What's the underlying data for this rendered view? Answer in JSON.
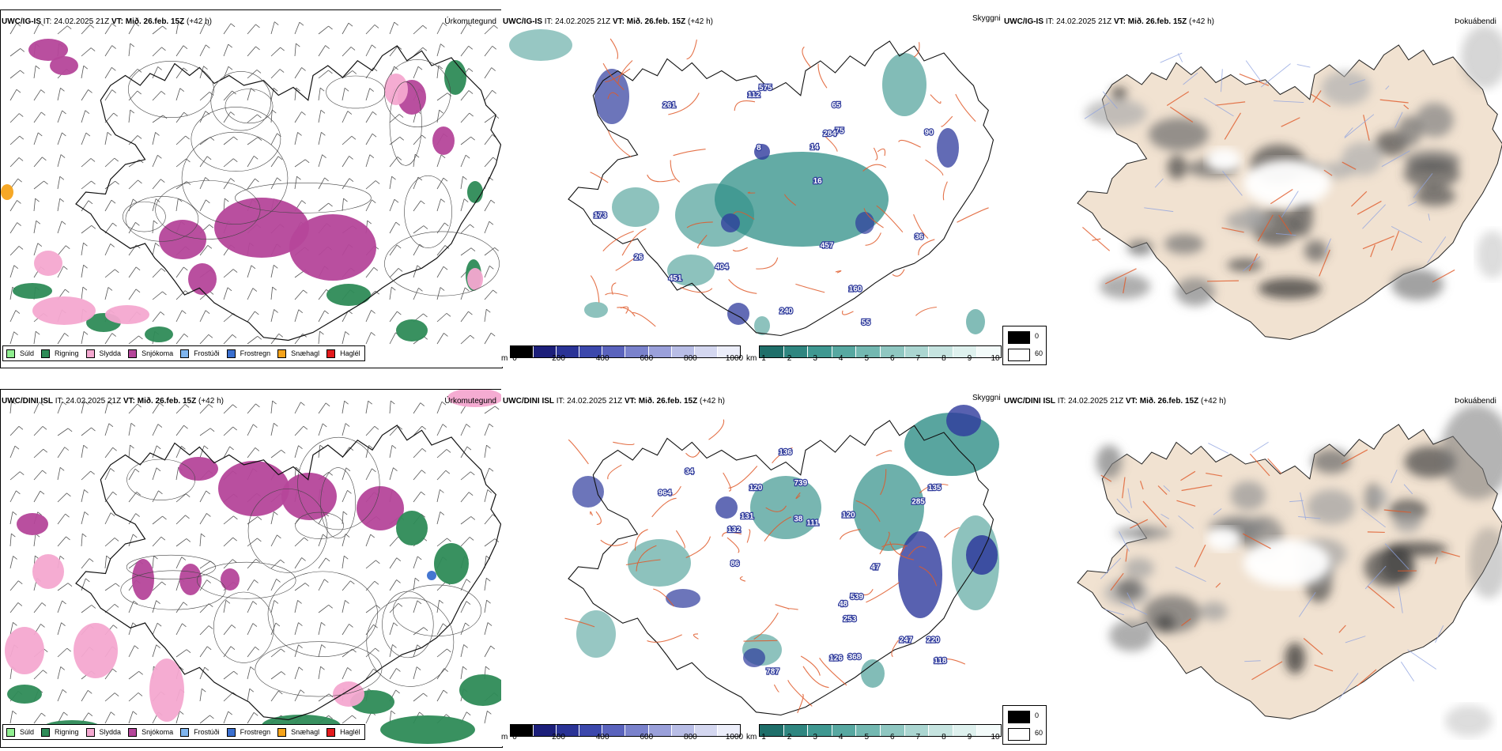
{
  "colors": {
    "rain": "#2e8b57",
    "drizzle": "#90ee90",
    "sleet": "#f4a8d0",
    "snow": "#b5469a",
    "freezing_drizzle": "#7fb5ee",
    "freezing_rain": "#3a6fcf",
    "snow_grains": "#f5a31a",
    "hail": "#e31a1c",
    "ceiling_teal": "#2f8f87",
    "ceiling_blue": "#2e3a9c",
    "land_fill": "#f1e2d1",
    "roads": "#e05a2a",
    "rivers": "#8fa3e0",
    "coast": "#000000"
  },
  "header_common": {
    "it_label": "IT: 24.02.2025 21Z",
    "vt_label": "VT:",
    "vt_value": "Mið. 26.feb. 15Z",
    "lead": "(+42 h)"
  },
  "rows": [
    {
      "model": "UWC/IG-IS",
      "panels": {
        "ptype_title": "Úrkomutegund",
        "ceiling_title": "Skyggni",
        "cloud_title": "Þokuábendi"
      },
      "ceiling_labels": [
        "55",
        "75",
        "90",
        "36",
        "14",
        "8",
        "160",
        "457",
        "261",
        "240",
        "26",
        "575",
        "284",
        "404",
        "16",
        "112",
        "65",
        "173",
        "451"
      ]
    },
    {
      "model": "UWC/DINI ISL",
      "panels": {
        "ptype_title": "Úrkomutegund",
        "ceiling_title": "Skyggni",
        "cloud_title": "Þokuábendi"
      },
      "ceiling_labels": [
        "739",
        "136",
        "220",
        "120",
        "964",
        "132",
        "368",
        "787",
        "285",
        "135",
        "47",
        "247",
        "539",
        "131",
        "111",
        "86",
        "48",
        "120",
        "34",
        "118",
        "253",
        "126",
        "38"
      ]
    }
  ],
  "ptype_legend": [
    {
      "label": "Súld",
      "color": "#90ee90"
    },
    {
      "label": "Rigning",
      "color": "#2e8b57"
    },
    {
      "label": "Slydda",
      "color": "#f4a8d0"
    },
    {
      "label": "Snjókoma",
      "color": "#b5469a"
    },
    {
      "label": "Frostúði",
      "color": "#7fb5ee"
    },
    {
      "label": "Frostregn",
      "color": "#3a6fcf"
    },
    {
      "label": "Snæhagl",
      "color": "#f5a31a"
    },
    {
      "label": "Haglél",
      "color": "#e31a1c"
    }
  ],
  "ceiling_bar_m": {
    "unit": "m",
    "ticks": [
      "0",
      "200",
      "400",
      "600",
      "800",
      "1000"
    ],
    "colors": [
      "#000000",
      "#1c1f7a",
      "#2a3396",
      "#3c48ac",
      "#5a63bd",
      "#7a82cc",
      "#9aa0da",
      "#b8bde6",
      "#d4d7f0",
      "#eceefa"
    ]
  },
  "ceiling_bar_km": {
    "unit": "km",
    "ticks": [
      "1",
      "2",
      "3",
      "4",
      "5",
      "6",
      "7",
      "8",
      "9",
      "10"
    ],
    "colors": [
      "#1f6f6a",
      "#2f8680",
      "#3f9891",
      "#57a8a1",
      "#73b8b1",
      "#8fc7c1",
      "#abd6d1",
      "#c6e4e0",
      "#def1ee",
      "#f3fbfa"
    ]
  },
  "cloud_legend": {
    "top_label": "0",
    "bottom_label": "60"
  }
}
